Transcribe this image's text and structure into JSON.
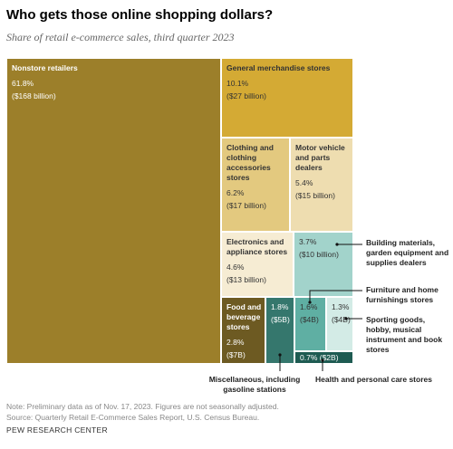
{
  "header": {
    "title": "Who gets those online shopping dollars?",
    "subtitle": "Share of retail e-commerce sales, third quarter 2023"
  },
  "chart_data": {
    "type": "treemap",
    "title": "Who gets those online shopping dollars?",
    "subtitle": "Share of retail e-commerce sales, third quarter 2023",
    "items": [
      {
        "name": "Nonstore retailers",
        "share": "61.8%",
        "amount": "($168 billion)",
        "value": 61.8,
        "color": "#9c7f2a"
      },
      {
        "name": "General merchandise stores",
        "share": "10.1%",
        "amount": "($27 billion)",
        "value": 10.1,
        "color": "#d4aa34"
      },
      {
        "name": "Clothing and clothing accessories stores",
        "share": "6.2%",
        "amount": "($17 billion)",
        "value": 6.2,
        "color": "#e3c97f"
      },
      {
        "name": "Motor vehicle and parts dealers",
        "share": "5.4%",
        "amount": "($15 billion)",
        "value": 5.4,
        "color": "#eeddb0"
      },
      {
        "name": "Electronics and appliance stores",
        "share": "4.6%",
        "amount": "($13 billion)",
        "value": 4.6,
        "color": "#f6ecd3"
      },
      {
        "name": "Building materials, garden equipment and supplies dealers",
        "share": "3.7%",
        "amount": "($10 billion)",
        "value": 3.7,
        "color": "#a2d3cb"
      },
      {
        "name": "Food and beverage stores",
        "share": "2.8%",
        "amount": "($7B)",
        "value": 2.8,
        "color": "#6d5a22"
      },
      {
        "name": "Miscellaneous, including gasoline stations",
        "share": "1.8%",
        "amount": "($5B)",
        "value": 1.8,
        "color": "#35776d"
      },
      {
        "name": "Furniture and home furnishings stores",
        "share": "1.6%",
        "amount": "($4B)",
        "value": 1.6,
        "color": "#5fafa3"
      },
      {
        "name": "Sporting goods, hobby, musical instrument and book stores",
        "share": "1.3%",
        "amount": "($4B)",
        "value": 1.3,
        "color": "#d3ebe6"
      },
      {
        "name": "Health and personal care stores",
        "share": "0.7%",
        "amount": "($2B)",
        "value": 0.7,
        "color": "#1e5b52"
      }
    ]
  },
  "footer": {
    "note": "Note: Preliminary data as of Nov. 17, 2023. Figures are not seasonally adjusted.",
    "source": "Source: Quarterly Retail E-Commerce Sales Report, U.S. Census Bureau.",
    "brand": "PEW RESEARCH CENTER"
  }
}
